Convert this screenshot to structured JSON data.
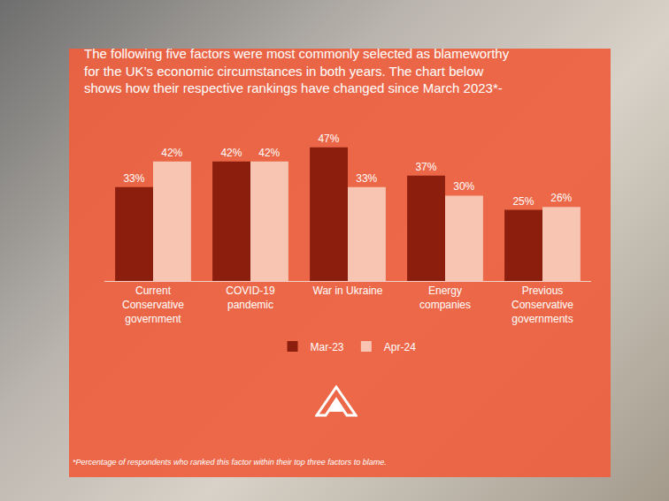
{
  "chart_data": {
    "type": "bar",
    "title": "The following five factors were most commonly selected as blameworthy for the UK’s economic circumstances in both years. The chart below shows how their respective rankings have changed since March 2023*-",
    "categories": [
      "Current Conservative government",
      "COVID-19 pandemic",
      "War in Ukraine",
      "Energy companies",
      "Previous Conservative governments"
    ],
    "series": [
      {
        "name": "Mar-23",
        "color": "#8c1e0d",
        "values": [
          33,
          42,
          47,
          37,
          25
        ],
        "value_labels": [
          "33%",
          "42%",
          "47%",
          "37%",
          "25%"
        ]
      },
      {
        "name": "Apr-24",
        "color": "#f7c5b1",
        "values": [
          42,
          42,
          33,
          30,
          26
        ],
        "value_labels": [
          "42%",
          "42%",
          "33%",
          "30%",
          "26%"
        ]
      }
    ],
    "annotations": [
      "*Percentage of respondents who ranked this factor within their top three factors to blame."
    ],
    "ylim": [
      0,
      50
    ],
    "data_labels": true,
    "tick_labels": "x",
    "grid": false,
    "legend": "bottom"
  }
}
